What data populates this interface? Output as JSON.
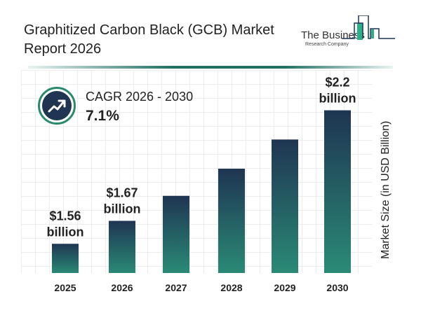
{
  "header": {
    "title": "Graphitized Carbon Black (GCB) Market Report 2026",
    "logo": {
      "line1": "The Business",
      "line2": "Research Company"
    }
  },
  "cagr": {
    "label": "CAGR 2026 - 2030",
    "value": "7.1%",
    "icon": "trending-up-icon"
  },
  "colors": {
    "bar_top": "#1f3552",
    "bar_bottom": "#2a8a76",
    "accent": "#2a8a6e"
  },
  "chart_data": {
    "type": "bar",
    "title": "Graphitized Carbon Black (GCB) Market Report 2026",
    "categories": [
      "2025",
      "2026",
      "2027",
      "2028",
      "2029",
      "2030"
    ],
    "values": [
      1.56,
      1.67,
      1.79,
      1.92,
      2.06,
      2.2
    ],
    "data_labels": [
      [
        "$1.56",
        "billion"
      ],
      [
        "$1.67",
        "billion"
      ],
      null,
      null,
      null,
      [
        "$2.2",
        "billion"
      ]
    ],
    "xlabel": "",
    "ylabel": "Market Size (in USD Billion)",
    "grid": true,
    "legend": "none"
  }
}
